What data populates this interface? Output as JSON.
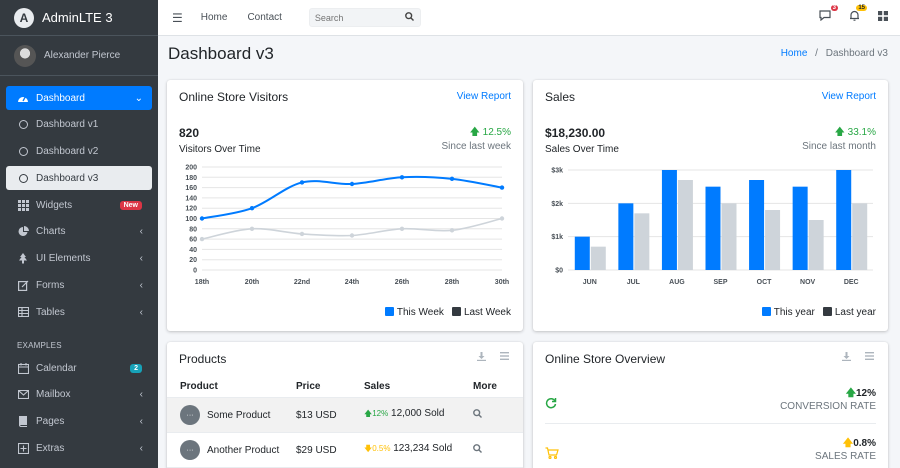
{
  "brand": {
    "logo_letter": "A",
    "name": "AdminLTE 3"
  },
  "user": {
    "name": "Alexander Pierce"
  },
  "sidebar": {
    "items": [
      {
        "label": "Dashboard",
        "icon": "dashboard-icon",
        "chevron": "⌄"
      },
      {
        "label": "Dashboard v1",
        "icon": "circle-icon"
      },
      {
        "label": "Dashboard v2",
        "icon": "circle-icon"
      },
      {
        "label": "Dashboard v3",
        "icon": "circle-icon"
      },
      {
        "label": "Widgets",
        "icon": "widgets-icon",
        "badge": "New"
      },
      {
        "label": "Charts",
        "icon": "pie-chart-icon",
        "chevron": "‹"
      },
      {
        "label": "UI Elements",
        "icon": "tree-icon",
        "chevron": "‹"
      },
      {
        "label": "Forms",
        "icon": "edit-icon",
        "chevron": "‹"
      },
      {
        "label": "Tables",
        "icon": "table-icon",
        "chevron": "‹"
      }
    ],
    "header": "EXAMPLES",
    "examples": [
      {
        "label": "Calendar",
        "icon": "calendar-icon",
        "badge": "2"
      },
      {
        "label": "Mailbox",
        "icon": "envelope-icon",
        "chevron": "‹"
      },
      {
        "label": "Pages",
        "icon": "book-icon",
        "chevron": "‹"
      },
      {
        "label": "Extras",
        "icon": "plus-square-icon",
        "chevron": "‹"
      }
    ]
  },
  "topbar": {
    "links": [
      "Home",
      "Contact"
    ],
    "search_placeholder": "Search",
    "messages_count": "3",
    "notifications_count": "15"
  },
  "page": {
    "title": "Dashboard v3",
    "breadcrumb": [
      "Home",
      "Dashboard v3"
    ],
    "breadcrumb_sep": "/"
  },
  "visitors_card": {
    "title": "Online Store Visitors",
    "link": "View Report",
    "value": "820",
    "subtitle": "Visitors Over Time",
    "change": "12.5%",
    "since": "Since last week"
  },
  "sales_card": {
    "title": "Sales",
    "link": "View Report",
    "value": "$18,230.00",
    "subtitle": "Sales Over Time",
    "change": "33.1%",
    "since": "Since last month"
  },
  "chart_data": [
    {
      "type": "line",
      "x": [
        "18th",
        "20th",
        "22nd",
        "24th",
        "26th",
        "28th",
        "30th"
      ],
      "yticks": [
        0,
        20,
        40,
        60,
        80,
        100,
        120,
        140,
        160,
        180,
        200
      ],
      "ylim": [
        0,
        200
      ],
      "grid": true,
      "legend_position": "bottom-right",
      "series": [
        {
          "name": "This Week",
          "color": "#007bff",
          "values": [
            100,
            120,
            170,
            167,
            180,
            177,
            160
          ]
        },
        {
          "name": "Last Week",
          "color": "#ced4da",
          "values": [
            60,
            80,
            70,
            67,
            80,
            77,
            100
          ]
        }
      ]
    },
    {
      "type": "bar",
      "categories": [
        "JUN",
        "JUL",
        "AUG",
        "SEP",
        "OCT",
        "NOV",
        "DEC"
      ],
      "yticks": [
        "$0",
        "$1k",
        "$2k",
        "$3k"
      ],
      "ylim": [
        0,
        3000
      ],
      "grid": true,
      "legend_position": "bottom-right",
      "series": [
        {
          "name": "This year",
          "color": "#007bff",
          "values": [
            1000,
            2000,
            3000,
            2500,
            2700,
            2500,
            3000
          ]
        },
        {
          "name": "Last year",
          "color": "#ced4da",
          "values": [
            700,
            1700,
            2700,
            2000,
            1800,
            1500,
            2000
          ]
        }
      ]
    }
  ],
  "products_card": {
    "title": "Products",
    "columns": [
      "Product",
      "Price",
      "Sales",
      "More"
    ],
    "rows": [
      {
        "name": "Some Product",
        "price": "$13 USD",
        "trend": "up",
        "change": "12%",
        "sold": "12,000 Sold"
      },
      {
        "name": "Another Product",
        "price": "$29 USD",
        "trend": "down",
        "change": "0.5%",
        "sold": "123,234 Sold"
      }
    ]
  },
  "overview_card": {
    "title": "Online Store Overview",
    "items": [
      {
        "value": "12%",
        "label": "CONVERSION RATE",
        "trend": "up",
        "icon": "refresh-icon",
        "color": "#28a745"
      },
      {
        "value": "0.8%",
        "label": "SALES RATE",
        "trend": "up",
        "icon": "cart-icon",
        "color": "#ffc107"
      }
    ]
  },
  "colors": {
    "primary": "#007bff",
    "success": "#28a745",
    "warning": "#ffc107",
    "danger": "#dc3545",
    "sidebar": "#343a40"
  }
}
